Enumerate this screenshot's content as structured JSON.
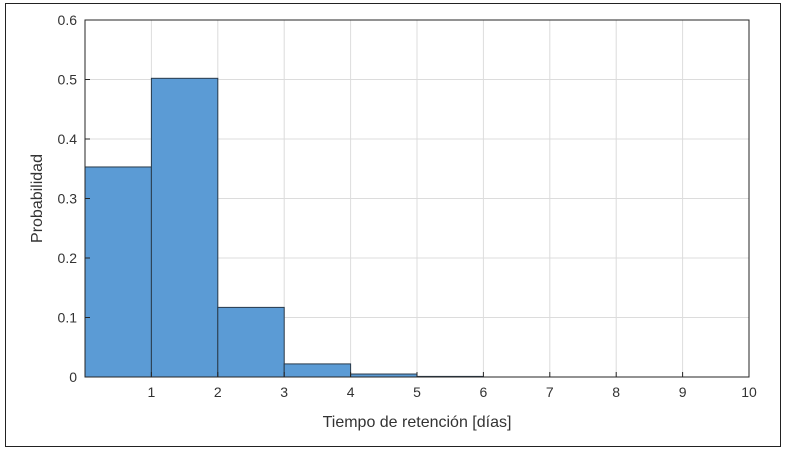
{
  "chart_data": {
    "type": "bar",
    "title": "",
    "xlabel": "Tiempo de retención [días]",
    "ylabel": "Probabilidad",
    "xlim": [
      0,
      10
    ],
    "ylim": [
      0,
      0.6
    ],
    "xticks": [
      1,
      2,
      3,
      4,
      5,
      6,
      7,
      8,
      9,
      10
    ],
    "yticks": [
      0,
      0.1,
      0.2,
      0.3,
      0.4,
      0.5,
      0.6
    ],
    "ytick_labels": [
      "0",
      "0.1",
      "0.2",
      "0.3",
      "0.4",
      "0.5",
      "0.6"
    ],
    "bin_edges": [
      0,
      1,
      2,
      3,
      4,
      5,
      6,
      7,
      8,
      9,
      10
    ],
    "values": [
      0.353,
      0.502,
      0.117,
      0.022,
      0.005,
      0.001,
      0.0,
      0.0,
      0.0,
      0.0
    ],
    "grid": true,
    "bar_color": "#5b9bd5",
    "edge_color": "#2a3a4a"
  }
}
